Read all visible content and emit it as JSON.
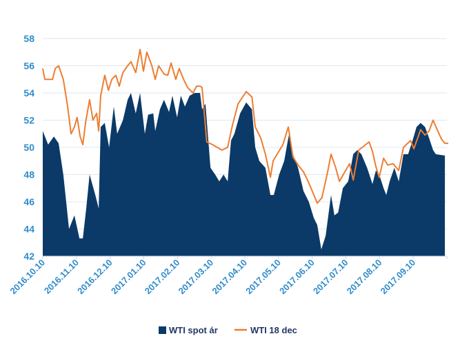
{
  "chart_data": {
    "type": "area",
    "title": "",
    "xlabel": "",
    "ylabel": "",
    "x_unit": "months since 2016.10.10",
    "xlim": [
      0,
      12
    ],
    "ylim": [
      42,
      58
    ],
    "yticks": [
      42,
      44,
      46,
      48,
      50,
      52,
      54,
      56,
      58
    ],
    "xtick_labels": [
      "2016.10.10",
      "2016.11.10",
      "2016.12.10",
      "2017.01.10",
      "2017.02.10",
      "2017.03.10",
      "2017.04.10",
      "2017.05.10",
      "2017.06.10",
      "2017.07.10",
      "2017.08.10",
      "2017.09.10"
    ],
    "grid": true,
    "legend_position": "bottom",
    "series": [
      {
        "name": "WTI spot ár",
        "kind": "area",
        "color": "#0b3a68",
        "x": [
          0,
          0.16,
          0.33,
          0.47,
          0.61,
          0.78,
          0.94,
          1.09,
          1.19,
          1.29,
          1.39,
          1.56,
          1.66,
          1.72,
          1.84,
          1.97,
          2.11,
          2.21,
          2.38,
          2.52,
          2.62,
          2.76,
          2.89,
          3.03,
          3.13,
          3.28,
          3.34,
          3.48,
          3.6,
          3.75,
          3.85,
          3.99,
          4.1,
          4.22,
          4.36,
          4.51,
          4.67,
          4.73,
          4.83,
          4.98,
          5.12,
          5.24,
          5.37,
          5.49,
          5.59,
          5.69,
          5.86,
          6.04,
          6.21,
          6.31,
          6.43,
          6.61,
          6.76,
          6.86,
          7.02,
          7.17,
          7.33,
          7.43,
          7.58,
          7.74,
          7.9,
          8.05,
          8.15,
          8.27,
          8.4,
          8.56,
          8.66,
          8.77,
          8.91,
          9.07,
          9.22,
          9.34,
          9.46,
          9.63,
          9.79,
          9.89,
          9.99,
          10.12,
          10.2,
          10.3,
          10.44,
          10.57,
          10.71,
          10.85,
          10.98,
          11.1,
          11.22,
          11.35,
          11.47,
          11.59,
          11.67,
          11.94
        ],
        "y": [
          51.2,
          50.2,
          50.8,
          50.3,
          48,
          44,
          45,
          43.3,
          43.3,
          45.5,
          48,
          46.5,
          45.5,
          51.5,
          51.8,
          50,
          53,
          51,
          52,
          53.5,
          54,
          52.5,
          54,
          51,
          52.4,
          52.5,
          51.2,
          52.8,
          53.5,
          52.6,
          53.8,
          52.2,
          53.8,
          53,
          53.8,
          54,
          54,
          52.8,
          53.2,
          48.5,
          48,
          47.5,
          48,
          47.5,
          50.5,
          51,
          52.5,
          53.3,
          52.8,
          50,
          49,
          48.5,
          46.5,
          46.5,
          48,
          49,
          51.2,
          49.5,
          48.5,
          46.8,
          46,
          44.8,
          44.3,
          42.5,
          43.5,
          46.5,
          45,
          45.2,
          47,
          47.5,
          49.5,
          49.8,
          49.5,
          48.5,
          47.3,
          48.3,
          48,
          47,
          46.5,
          47.5,
          48.5,
          47.5,
          49.5,
          49.5,
          50.5,
          51.5,
          51.8,
          51.5,
          50.7,
          49.8,
          49.5,
          49.4
        ]
      },
      {
        "name": "WTI 18 dec",
        "kind": "line",
        "color": "#ed7d31",
        "x": [
          0,
          0.06,
          0.16,
          0.29,
          0.37,
          0.47,
          0.61,
          0.74,
          0.84,
          0.94,
          1.02,
          1.11,
          1.19,
          1.27,
          1.39,
          1.49,
          1.6,
          1.66,
          1.72,
          1.84,
          1.95,
          2.05,
          2.17,
          2.27,
          2.38,
          2.52,
          2.62,
          2.76,
          2.89,
          2.99,
          3.09,
          3.24,
          3.34,
          3.44,
          3.6,
          3.71,
          3.81,
          3.95,
          4.05,
          4.2,
          4.3,
          4.46,
          4.57,
          4.67,
          4.73,
          4.87,
          5.04,
          5.18,
          5.32,
          5.49,
          5.63,
          5.8,
          6.04,
          6.21,
          6.31,
          6.47,
          6.61,
          6.76,
          6.84,
          6.96,
          7.13,
          7.29,
          7.43,
          7.58,
          7.74,
          7.88,
          8.05,
          8.15,
          8.29,
          8.46,
          8.56,
          8.7,
          8.81,
          8.97,
          9.11,
          9.22,
          9.38,
          9.69,
          9.79,
          9.89,
          9.99,
          10.12,
          10.24,
          10.4,
          10.57,
          10.71,
          10.92,
          11.02,
          11.22,
          11.35,
          11.47,
          11.59,
          11.73,
          11.84,
          11.94,
          12.04
        ],
        "y": [
          55.8,
          55,
          55,
          55,
          55.8,
          56,
          55,
          53,
          51,
          51.5,
          52.2,
          50.8,
          50.2,
          51.8,
          53.5,
          52,
          52.5,
          51.2,
          53.8,
          55.3,
          54.2,
          55,
          55.3,
          54.5,
          55.5,
          56,
          56.3,
          55.5,
          57.2,
          55.6,
          57,
          56,
          55,
          56,
          55.4,
          55.3,
          56.2,
          55,
          55.8,
          54.9,
          54.4,
          54,
          54.5,
          54.5,
          54.4,
          50.4,
          50.2,
          50,
          49.8,
          50,
          51.6,
          53.2,
          54.1,
          53.7,
          51.5,
          50.7,
          49.5,
          47.8,
          49,
          49.5,
          50.2,
          51.5,
          49.3,
          48.7,
          48.2,
          47.5,
          46.5,
          45.9,
          46.3,
          48.2,
          49.5,
          48.5,
          47.5,
          48.2,
          48.8,
          47.6,
          49.8,
          50.4,
          49.7,
          48.6,
          47.8,
          49.2,
          48.7,
          48.8,
          48.3,
          50,
          50.5,
          49.9,
          51.3,
          50.9,
          51.2,
          52,
          51.2,
          50.6,
          50.3,
          50.3
        ]
      }
    ]
  }
}
